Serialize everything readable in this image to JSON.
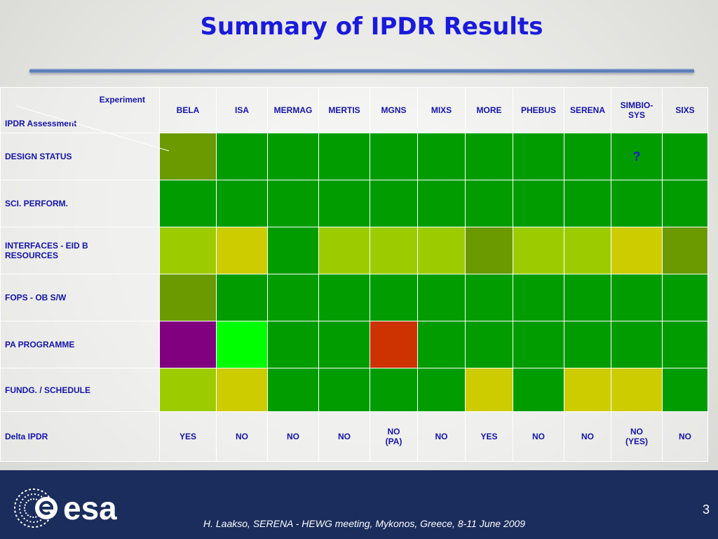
{
  "title": "Summary of IPDR Results",
  "table": {
    "corner_experiment": "Experiment",
    "corner_assessment": "IPDR Assessment",
    "columns": [
      "BELA",
      "ISA",
      "MERMAG",
      "MERTIS",
      "MGNS",
      "MIXS",
      "MORE",
      "PHEBUS",
      "SERENA",
      "SIMBIO-\nSYS",
      "SIXS"
    ],
    "colors": {
      "green": "#009c00",
      "dark_olive": "#6a9a00",
      "light_green": "#9ccc00",
      "yellow": "#cccc00",
      "bright_green": "#00ff00",
      "purple": "#800080",
      "red": "#cc3300"
    },
    "rows": [
      {
        "label": "DESIGN STATUS",
        "cells": [
          "dark_olive",
          "green",
          "green",
          "green",
          "green",
          "green",
          "green",
          "green",
          "green",
          "green",
          "green"
        ],
        "marks": {
          "9": "?"
        }
      },
      {
        "label": "SCI. PERFORM.",
        "cells": [
          "green",
          "green",
          "green",
          "green",
          "green",
          "green",
          "green",
          "green",
          "green",
          "green",
          "green"
        ]
      },
      {
        "label": "INTERFACES - EID B\nRESOURCES",
        "cells": [
          "light_green",
          "yellow",
          "green",
          "light_green",
          "light_green",
          "light_green",
          "dark_olive",
          "light_green",
          "light_green",
          "yellow",
          "dark_olive"
        ]
      },
      {
        "label": "FOPS - OB S/W",
        "cells": [
          "dark_olive",
          "green",
          "green",
          "green",
          "green",
          "green",
          "green",
          "green",
          "green",
          "green",
          "green"
        ]
      },
      {
        "label": "PA PROGRAMME",
        "cells": [
          "purple",
          "bright_green",
          "green",
          "green",
          "red",
          "green",
          "green",
          "green",
          "green",
          "green",
          "green"
        ]
      },
      {
        "label": "FUNDG. / SCHEDULE",
        "cells": [
          "light_green",
          "yellow",
          "green",
          "green",
          "green",
          "green",
          "yellow",
          "green",
          "yellow",
          "yellow",
          "green"
        ]
      }
    ],
    "delta_label": "Delta IPDR",
    "delta_values": [
      "YES",
      "NO",
      "NO",
      "NO",
      "NO\n(PA)",
      "NO",
      "YES",
      "NO",
      "NO",
      "NO\n(YES)",
      "NO"
    ]
  },
  "footer": {
    "logo_text": "esa",
    "citation": "H. Laakso, SERENA - HEWG meeting, Mykonos, Greece, 8-11 June 2009",
    "page_number": "3",
    "background": "#1a2d5c"
  }
}
